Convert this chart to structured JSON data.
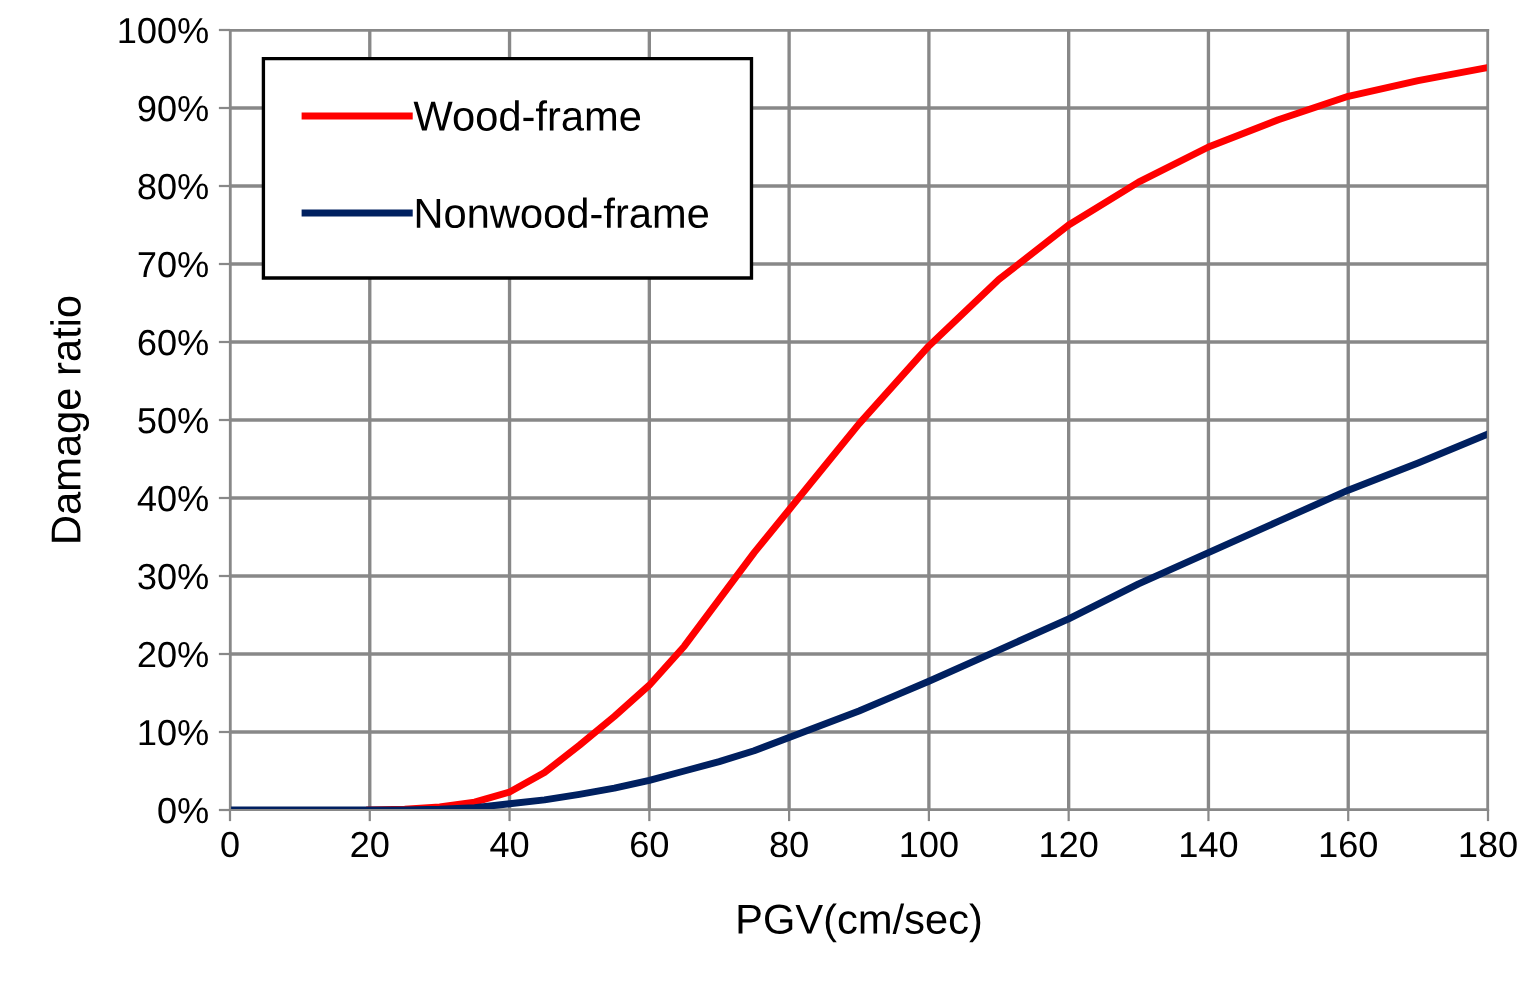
{
  "chart_data": {
    "type": "line",
    "xlabel": "PGV(cm/sec)",
    "ylabel": "Damage ratio",
    "xlim": [
      0,
      180
    ],
    "xticks": [
      0,
      20,
      40,
      60,
      80,
      100,
      120,
      140,
      160,
      180
    ],
    "ylim": [
      0,
      100
    ],
    "yticks": [
      {
        "value": 0,
        "label": "0%"
      },
      {
        "value": 10,
        "label": "10%"
      },
      {
        "value": 20,
        "label": "20%"
      },
      {
        "value": 30,
        "label": "30%"
      },
      {
        "value": 40,
        "label": "40%"
      },
      {
        "value": 50,
        "label": "50%"
      },
      {
        "value": 60,
        "label": "60%"
      },
      {
        "value": 70,
        "label": "70%"
      },
      {
        "value": 80,
        "label": "80%"
      },
      {
        "value": 90,
        "label": "90%"
      },
      {
        "value": 100,
        "label": "100%"
      }
    ],
    "grid": true,
    "legend": "top left",
    "line_style": "solid",
    "x": [
      0,
      10,
      20,
      25,
      30,
      35,
      40,
      45,
      50,
      55,
      60,
      65,
      70,
      75,
      80,
      85,
      90,
      95,
      100,
      110,
      120,
      130,
      140,
      150,
      160,
      170,
      180
    ],
    "series": [
      {
        "name": "Wood-frame",
        "color": "#ff0000",
        "values": [
          null,
          null,
          0,
          0.1,
          0.4,
          1,
          2.3,
          4.8,
          8.3,
          12,
          16,
          21,
          27,
          33,
          38.5,
          44,
          49.5,
          54.5,
          59.5,
          68,
          75,
          80.5,
          85,
          88.5,
          91.5,
          93.5,
          95.2
        ]
      },
      {
        "name": "Nonwood-frame",
        "color": "#002060",
        "values": [
          0,
          0,
          0,
          0,
          0.1,
          0.3,
          0.8,
          1.3,
          2,
          2.8,
          3.8,
          5,
          6.2,
          7.6,
          9.3,
          11,
          12.7,
          14.6,
          16.5,
          20.5,
          24.5,
          29,
          33,
          37,
          41,
          44.5,
          48.2
        ]
      }
    ]
  }
}
